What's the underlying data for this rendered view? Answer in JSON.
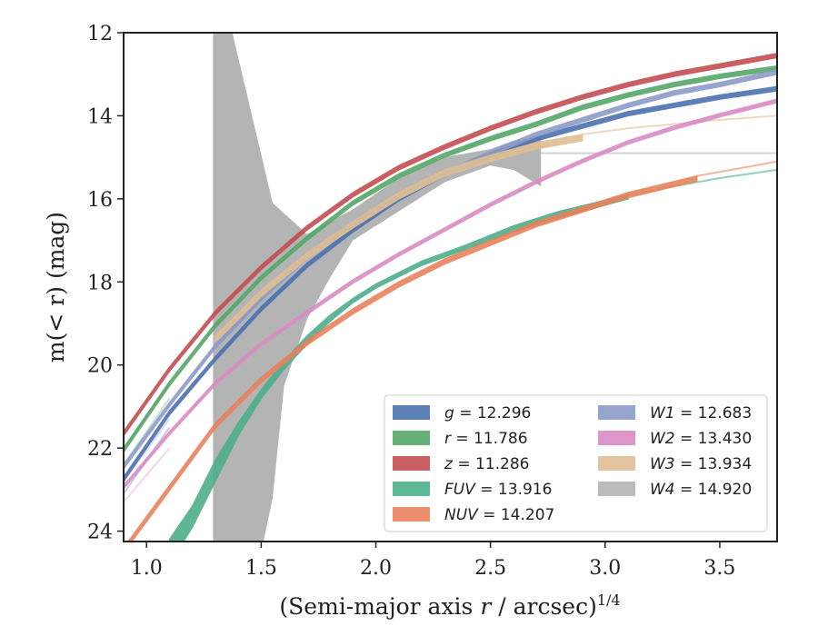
{
  "chart_data": {
    "type": "line",
    "xlabel_main": "(Semi-major axis ",
    "xlabel_var": "r",
    "xlabel_unit": " / arcsec)",
    "xlabel_exp": "1/4",
    "ylabel": "m(< r) (mag)",
    "xlim": [
      0.9,
      3.75
    ],
    "ylim": [
      24.25,
      12.0
    ],
    "y_inverted": true,
    "xticks": [
      "1.0",
      "1.5",
      "2.0",
      "2.5",
      "3.0",
      "3.5"
    ],
    "yticks": [
      "12",
      "14",
      "16",
      "18",
      "20",
      "22",
      "24"
    ],
    "grid": false,
    "legend_position": "lower-right",
    "series": [
      {
        "name": "g",
        "total": "12.296",
        "color": "#4c72b0",
        "x": [
          0.9,
          1.1,
          1.3,
          1.5,
          1.7,
          1.9,
          2.1,
          2.3,
          2.5,
          2.7,
          2.9,
          3.1,
          3.3,
          3.5,
          3.75
        ],
        "y": [
          22.7,
          21.1,
          19.8,
          18.6,
          17.55,
          16.7,
          15.95,
          15.35,
          14.9,
          14.5,
          14.2,
          13.9,
          13.7,
          13.5,
          13.3
        ],
        "width_mag": 0.1,
        "ghost_end": 0.95
      },
      {
        "name": "r",
        "total": "11.786",
        "color": "#55a868",
        "x": [
          0.9,
          1.1,
          1.3,
          1.5,
          1.7,
          1.9,
          2.1,
          2.3,
          2.5,
          2.7,
          2.9,
          3.1,
          3.3,
          3.5,
          3.75
        ],
        "y": [
          22.0,
          20.4,
          19.0,
          17.85,
          16.9,
          16.05,
          15.4,
          14.9,
          14.5,
          14.15,
          13.75,
          13.45,
          13.2,
          13.0,
          12.8
        ],
        "width_mag": 0.1,
        "ghost_end": 0.95
      },
      {
        "name": "z",
        "total": "11.286",
        "color": "#c44e52",
        "x": [
          0.9,
          1.1,
          1.3,
          1.5,
          1.7,
          1.9,
          2.1,
          2.3,
          2.5,
          2.7,
          2.9,
          3.1,
          3.3,
          3.5,
          3.75
        ],
        "y": [
          21.6,
          20.05,
          18.7,
          17.6,
          16.65,
          15.85,
          15.2,
          14.7,
          14.25,
          13.85,
          13.5,
          13.2,
          12.95,
          12.75,
          12.5
        ],
        "width_mag": 0.1,
        "ghost_end": 0.95
      },
      {
        "name": "FUV",
        "total": "13.916",
        "color": "#4daf8c",
        "x": [
          1.1,
          1.2,
          1.3,
          1.4,
          1.5,
          1.6,
          1.7,
          1.8,
          1.9,
          2.0,
          2.2,
          2.4,
          2.6,
          2.8,
          3.1
        ],
        "y": [
          24.2,
          23.4,
          22.3,
          21.4,
          20.6,
          19.9,
          19.3,
          18.8,
          18.4,
          18.05,
          17.5,
          17.1,
          16.65,
          16.3,
          15.9
        ],
        "y_lower": [
          24.8,
          23.9,
          22.8,
          21.7,
          20.8,
          20.1,
          19.5,
          18.95,
          18.5,
          18.15,
          17.6,
          17.2,
          16.8,
          16.45,
          16.0
        ],
        "ghost_x": [
          3.1,
          3.3,
          3.5,
          3.75
        ],
        "ghost_y": [
          15.9,
          15.7,
          15.5,
          15.3
        ]
      },
      {
        "name": "NUV",
        "total": "14.207",
        "color": "#e8825c",
        "x": [
          0.9,
          1.1,
          1.3,
          1.5,
          1.7,
          1.9,
          2.1,
          2.3,
          2.5,
          2.7,
          2.9,
          3.1,
          3.4
        ],
        "y": [
          24.4,
          22.9,
          21.4,
          20.3,
          19.4,
          18.65,
          18.0,
          17.45,
          17.0,
          16.55,
          16.2,
          15.85,
          15.45
        ],
        "width_mag": 0.12,
        "ghost_x": [
          3.4,
          3.6,
          3.75
        ],
        "ghost_y": [
          15.45,
          15.25,
          15.1
        ]
      },
      {
        "name": "W1",
        "total": "12.683",
        "color": "#8c9bc9",
        "x": [
          0.9,
          1.1,
          1.3,
          1.5,
          1.7,
          1.9,
          2.1,
          2.3,
          2.5,
          2.7,
          2.9,
          3.1,
          3.3,
          3.5,
          3.75
        ],
        "y": [
          22.4,
          20.9,
          19.5,
          18.35,
          17.35,
          16.55,
          15.9,
          15.35,
          14.85,
          14.4,
          14.05,
          13.7,
          13.4,
          13.2,
          12.9
        ],
        "width_mag": 0.1,
        "ghost_end": 0.95
      },
      {
        "name": "W2",
        "total": "13.430",
        "color": "#da8bc3",
        "x": [
          0.9,
          1.1,
          1.3,
          1.5,
          1.7,
          1.9,
          2.1,
          2.3,
          2.5,
          2.7,
          2.9,
          3.1,
          3.3,
          3.5,
          3.75
        ],
        "y": [
          22.9,
          21.6,
          20.4,
          19.45,
          18.7,
          17.95,
          17.3,
          16.7,
          16.1,
          15.55,
          15.05,
          14.6,
          14.25,
          13.95,
          13.6
        ],
        "width_mag": 0.08,
        "ghost_end": 1.15
      },
      {
        "name": "W3",
        "total": "13.934",
        "color": "#dfbf94",
        "x": [
          1.3,
          1.5,
          1.7,
          1.9,
          2.1,
          2.3,
          2.5,
          2.7,
          2.9
        ],
        "y": [
          19.3,
          18.2,
          17.3,
          16.55,
          15.85,
          15.3,
          14.95,
          14.65,
          14.45
        ],
        "width_mag": 0.15,
        "ghost_x": [
          2.9,
          3.1,
          3.3,
          3.5,
          3.75
        ],
        "ghost_y": [
          14.45,
          14.3,
          14.2,
          14.1,
          14.0
        ]
      },
      {
        "name": "W4",
        "total": "14.920",
        "color": "#b4b4b4",
        "ghost_x": [
          2.7,
          3.0,
          3.3,
          3.75
        ],
        "ghost_y": [
          14.9,
          14.9,
          14.9,
          14.9
        ]
      }
    ],
    "w4_band": {
      "upper_x": [
        1.29,
        1.29,
        1.37,
        1.55,
        1.7,
        1.9,
        2.1,
        2.3,
        2.5,
        2.6,
        2.72,
        2.72
      ],
      "upper_y": [
        24.25,
        11.9,
        11.9,
        16.1,
        16.85,
        16.25,
        15.5,
        15.0,
        14.8,
        14.6,
        14.5,
        15.7
      ],
      "lower_x": [
        2.72,
        2.6,
        2.5,
        2.3,
        2.1,
        1.9,
        1.8,
        1.7,
        1.6,
        1.55,
        1.51,
        1.29
      ],
      "lower_y": [
        15.7,
        15.3,
        15.2,
        15.6,
        16.3,
        17.0,
        17.9,
        18.9,
        20.5,
        23.2,
        24.25,
        24.25
      ]
    }
  }
}
